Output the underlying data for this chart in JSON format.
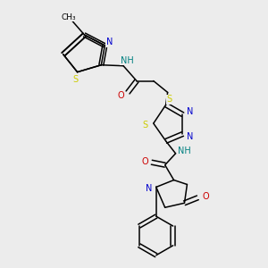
{
  "background_color": "#ececec",
  "fig_width": 3.0,
  "fig_height": 3.0,
  "dpi": 100,
  "line_color": "black",
  "line_width": 1.1,
  "atom_colors": {
    "N": "#0000cc",
    "S": "#cccc00",
    "O": "#cc0000",
    "NH": "#008080",
    "C": "black"
  },
  "font_size": 6.5
}
